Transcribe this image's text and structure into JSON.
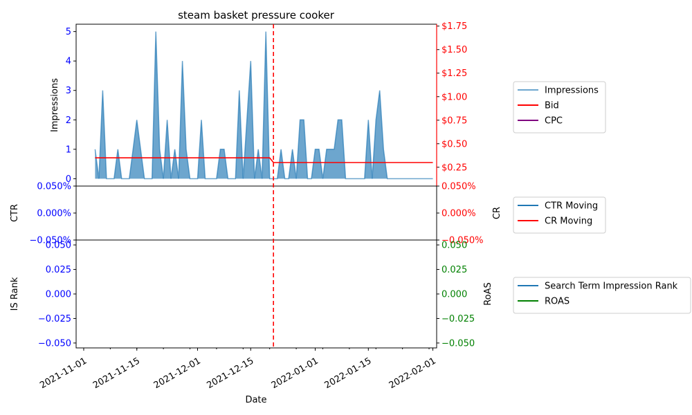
{
  "chart_data": [
    {
      "type": "area",
      "panel": "top",
      "title": "steam basket pressure cooker",
      "ylabel": "Impressions",
      "ylabel_right": "",
      "ylim": [
        -0.25,
        5.25
      ],
      "y_ticks": [
        0,
        1,
        2,
        3,
        4,
        5
      ],
      "y_tick_labels": [
        "0",
        "1",
        "2",
        "3",
        "4",
        "5"
      ],
      "y2lim": [
        0.05,
        1.77
      ],
      "y2_ticks": [
        0.25,
        0.5,
        0.75,
        1.0,
        1.25,
        1.5,
        1.75
      ],
      "y2_tick_labels": [
        "$0.25",
        "$0.50",
        "$0.75",
        "$1.00",
        "$1.25",
        "$1.50",
        "$1.75"
      ],
      "series": [
        {
          "name": "Impressions",
          "axis": "left",
          "color": "#1f77b4",
          "x": [
            "2021-11-04",
            "2021-11-05",
            "2021-11-06",
            "2021-11-07",
            "2021-11-08",
            "2021-11-09",
            "2021-11-10",
            "2021-11-11",
            "2021-11-12",
            "2021-11-13",
            "2021-11-14",
            "2021-11-15",
            "2021-11-16",
            "2021-11-17",
            "2021-11-18",
            "2021-11-19",
            "2021-11-20",
            "2021-11-21",
            "2021-11-22",
            "2021-11-23",
            "2021-11-24",
            "2021-11-25",
            "2021-11-26",
            "2021-11-27",
            "2021-11-28",
            "2021-11-29",
            "2021-11-30",
            "2021-12-01",
            "2021-12-02",
            "2021-12-03",
            "2021-12-04",
            "2021-12-05",
            "2021-12-06",
            "2021-12-07",
            "2021-12-08",
            "2021-12-09",
            "2021-12-10",
            "2021-12-11",
            "2021-12-12",
            "2021-12-13",
            "2021-12-14",
            "2021-12-15",
            "2021-12-16",
            "2021-12-17",
            "2021-12-18",
            "2021-12-19",
            "2021-12-20",
            "2021-12-21",
            "2021-12-22",
            "2021-12-23",
            "2021-12-24",
            "2021-12-25",
            "2021-12-26",
            "2021-12-27",
            "2021-12-28",
            "2021-12-29",
            "2021-12-30",
            "2021-12-31",
            "2022-01-01",
            "2022-01-02",
            "2022-01-03",
            "2022-01-04",
            "2022-01-05",
            "2022-01-06",
            "2022-01-07",
            "2022-01-08",
            "2022-01-09",
            "2022-01-10",
            "2022-01-11",
            "2022-01-12",
            "2022-01-13",
            "2022-01-14",
            "2022-01-15",
            "2022-01-16",
            "2022-01-17",
            "2022-01-18",
            "2022-01-19",
            "2022-01-20",
            "2022-01-21",
            "2022-01-22",
            "2022-01-23",
            "2022-01-24",
            "2022-01-25",
            "2022-01-26",
            "2022-01-27",
            "2022-01-28",
            "2022-01-29",
            "2022-01-30",
            "2022-01-31",
            "2022-02-01"
          ],
          "values": [
            1,
            0,
            3,
            0,
            0,
            0,
            1,
            0,
            0,
            0,
            1,
            2,
            1,
            0,
            0,
            0,
            5,
            1,
            0,
            2,
            0,
            1,
            0,
            4,
            1,
            0,
            0,
            0,
            2,
            0,
            0,
            0,
            0,
            1,
            1,
            0,
            0,
            0,
            3,
            0,
            2,
            4,
            0,
            1,
            0,
            5,
            0,
            0,
            0,
            1,
            0,
            0,
            1,
            0,
            2,
            2,
            0,
            0,
            1,
            1,
            0,
            1,
            1,
            1,
            2,
            2,
            0,
            0,
            0,
            0,
            0,
            0,
            2,
            0,
            2,
            3,
            1,
            0,
            0,
            0,
            0,
            0,
            0,
            0,
            0,
            0,
            0,
            0,
            0,
            0
          ]
        },
        {
          "name": "Bid",
          "axis": "right",
          "color": "#ff0000",
          "x": [
            "2021-11-04",
            "2021-12-20",
            "2021-12-21",
            "2022-02-01"
          ],
          "values": [
            0.35,
            0.35,
            0.3,
            0.3
          ]
        },
        {
          "name": "CPC",
          "axis": "right",
          "color": "#800080",
          "x": [],
          "values": []
        }
      ],
      "vline": {
        "x": "2021-12-21",
        "color": "#ff0000",
        "style": "dashed"
      },
      "legend_placement": "outside-right"
    },
    {
      "type": "line",
      "panel": "middle",
      "ylabel": "CTR",
      "ylabel_right": "CR",
      "ylim": [
        -0.05,
        0.05
      ],
      "y_tick_labels": [
        "−0.050%",
        "0.000%",
        "0.050%"
      ],
      "y2_tick_labels": [
        "−0.050%",
        "0.000%",
        "0.050%"
      ],
      "series": [
        {
          "name": "CTR Moving",
          "axis": "left",
          "color": "#1f77b4",
          "x": [],
          "values": []
        },
        {
          "name": "CR Moving",
          "axis": "right",
          "color": "#ff0000",
          "x": [],
          "values": []
        }
      ],
      "legend_placement": "outside-right"
    },
    {
      "type": "line",
      "panel": "bottom",
      "ylabel": "IS Rank",
      "ylabel_right": "RoAS",
      "xlabel": "Date",
      "ylim": [
        -0.055,
        0.055
      ],
      "y_tick_labels": [
        "−0.050",
        "−0.025",
        "0.000",
        "0.025",
        "0.050"
      ],
      "y2_tick_labels": [
        "−0.050",
        "−0.025",
        "0.000",
        "0.025",
        "0.050"
      ],
      "x_ticks": [
        "2021-11-01",
        "2021-11-15",
        "2021-12-01",
        "2021-12-15",
        "2022-01-01",
        "2022-01-15",
        "2022-02-01"
      ],
      "x_tick_labels": [
        "2021-11-01",
        "2021-11-15",
        "2021-12-01",
        "2021-12-15",
        "2022-01-01",
        "2022-01-15",
        "2022-02-01"
      ],
      "series": [
        {
          "name": "Search Term Impression Rank",
          "axis": "left",
          "color": "#1f77b4",
          "x": [],
          "values": []
        },
        {
          "name": "ROAS",
          "axis": "right",
          "color": "#008000",
          "x": [],
          "values": []
        }
      ],
      "legend_placement": "outside-right"
    }
  ]
}
